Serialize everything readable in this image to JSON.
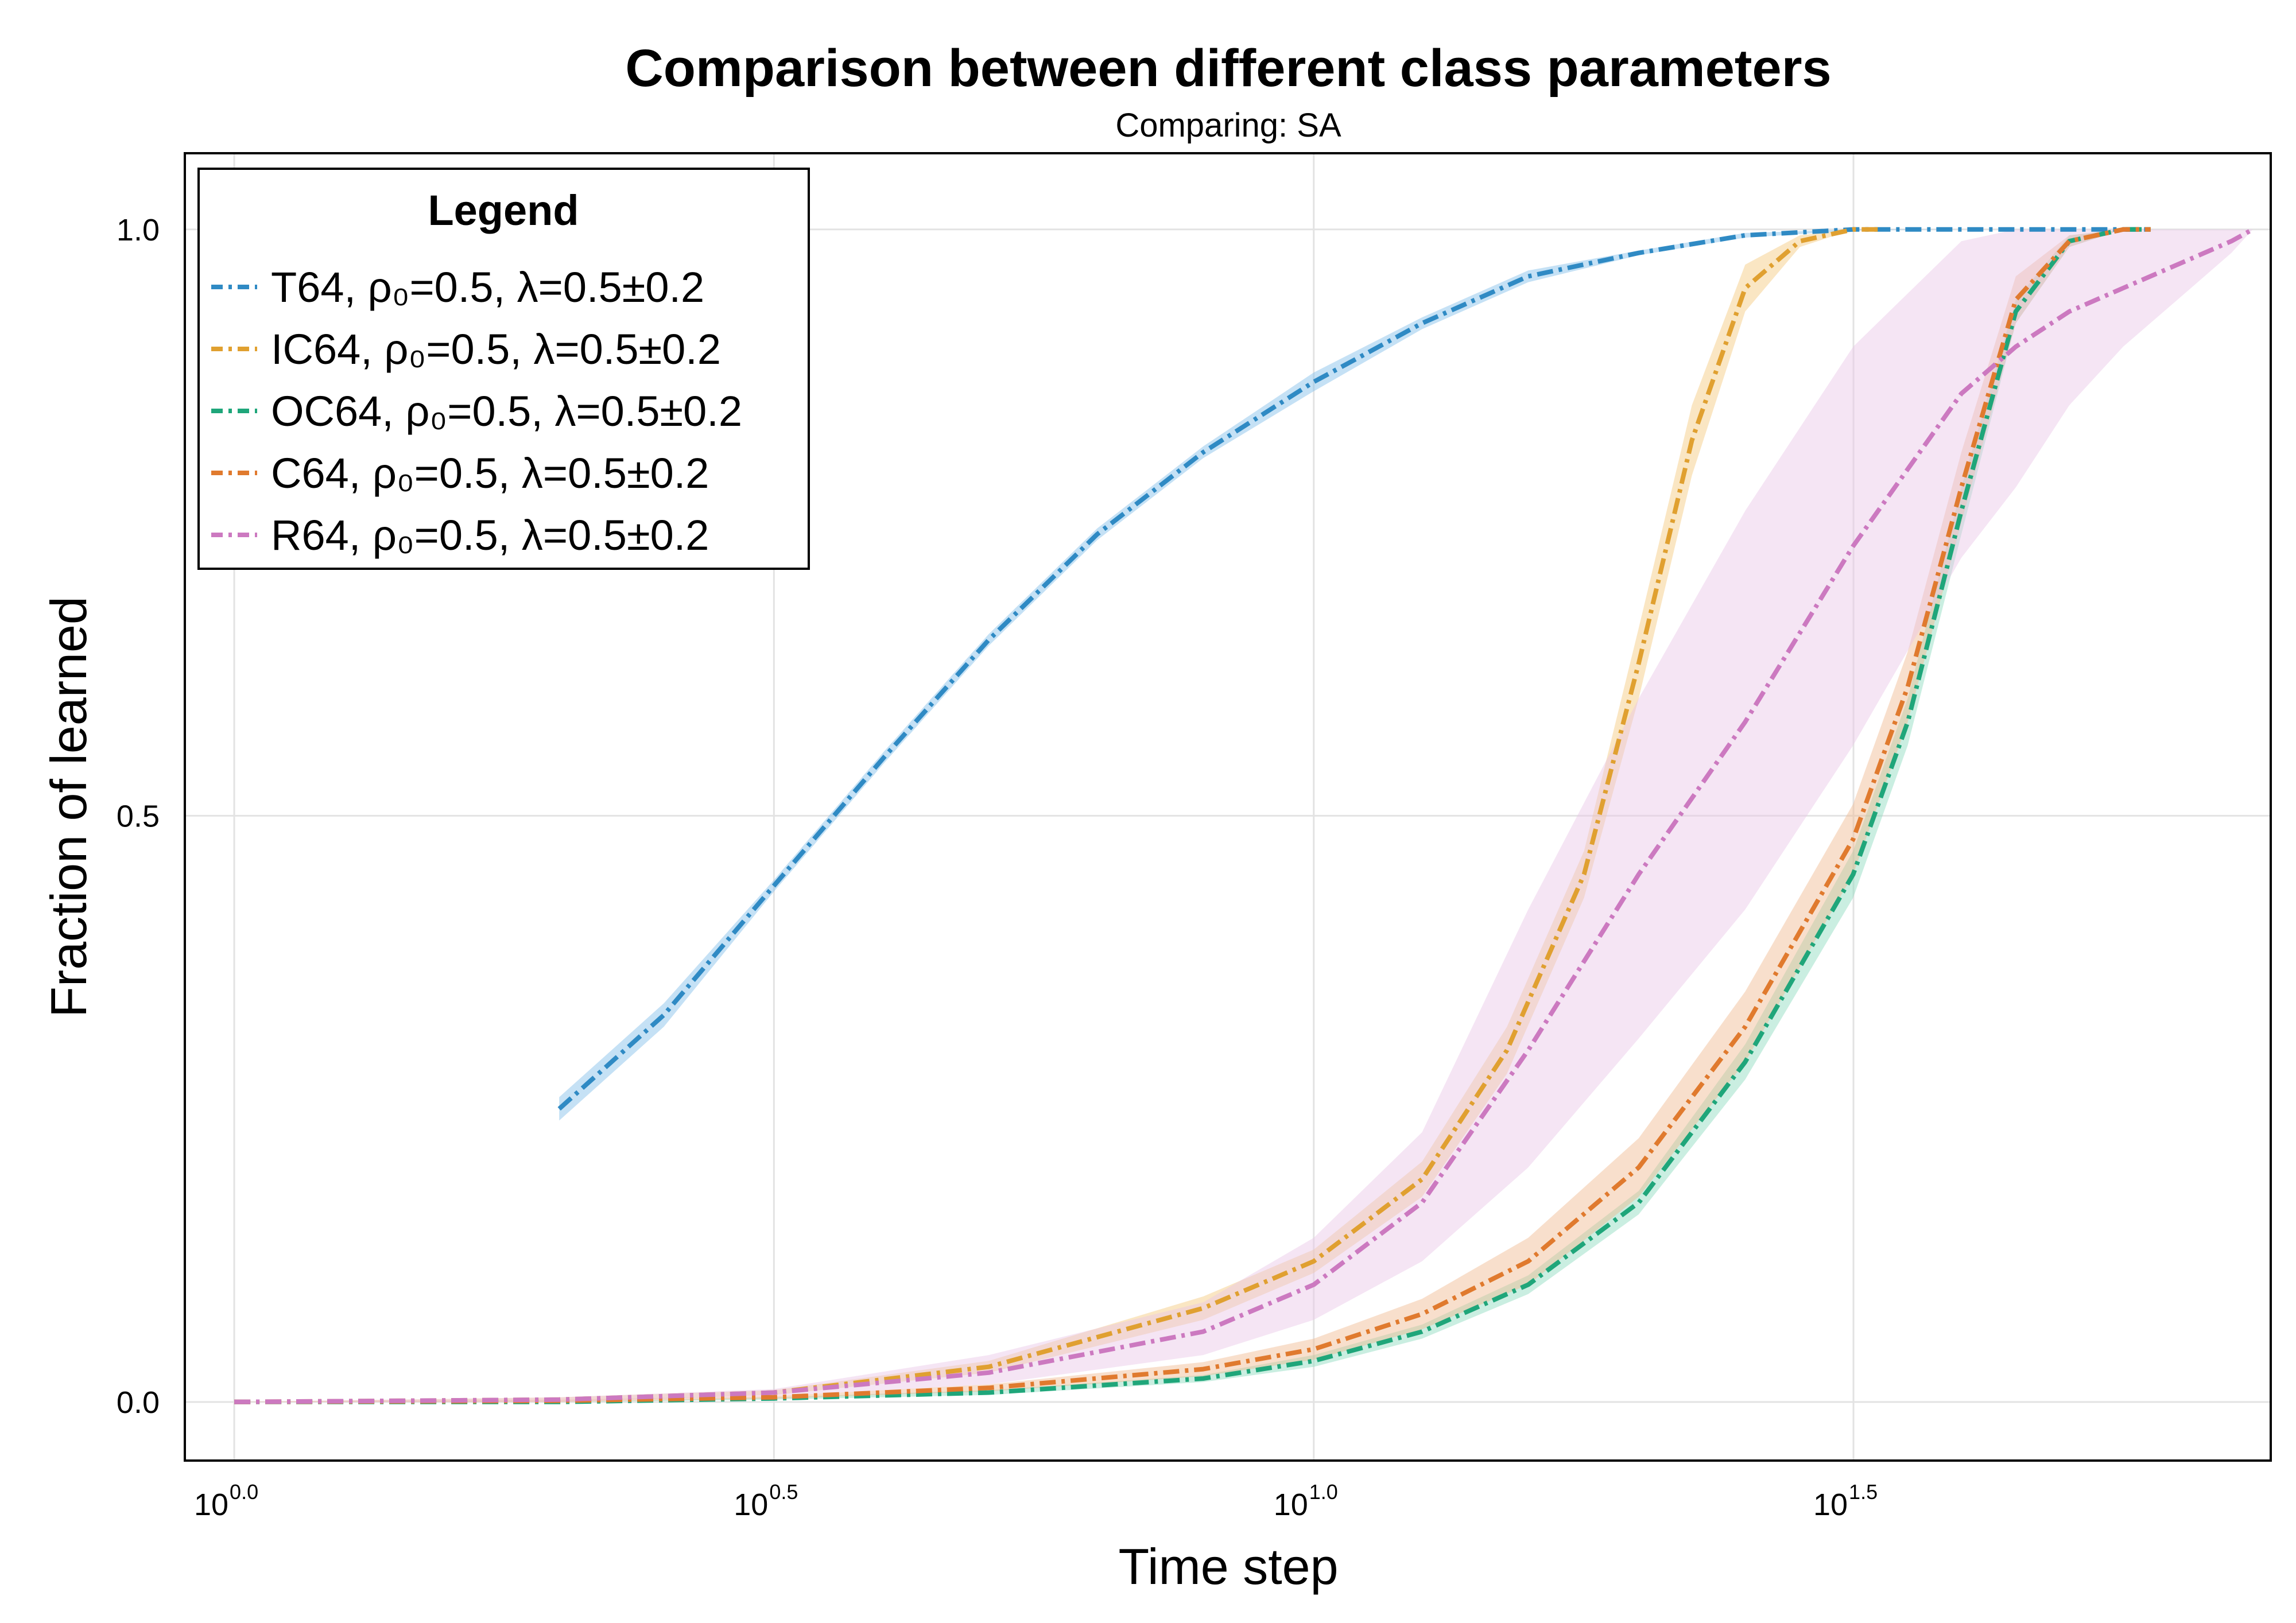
{
  "chart_data": {
    "type": "line",
    "title": "Comparison between different class parameters",
    "subtitle": "Comparing: SA",
    "xlabel": "Time step",
    "ylabel": "Fraction of learned",
    "x_scale": "log10",
    "xlim": [
      0.9,
      77
    ],
    "ylim": [
      -0.05,
      1.065
    ],
    "grid": true,
    "x_ticks": [
      {
        "base": "10",
        "exp": "0.0",
        "value": 1.0
      },
      {
        "base": "10",
        "exp": "0.5",
        "value": 3.162
      },
      {
        "base": "10",
        "exp": "1.0",
        "value": 10.0
      },
      {
        "base": "10",
        "exp": "1.5",
        "value": 31.62
      }
    ],
    "y_ticks": [
      {
        "label": "0.0",
        "value": 0.0
      },
      {
        "label": "0.5",
        "value": 0.5
      },
      {
        "label": "1.0",
        "value": 1.0
      }
    ],
    "legend": {
      "title": "Legend",
      "position": "top-left",
      "entries": [
        {
          "name": "T64, ρ₀=0.5, λ=0.5±0.2",
          "color": "#2f8ac4"
        },
        {
          "name": "IC64, ρ₀=0.5, λ=0.5±0.2",
          "color": "#e0a030"
        },
        {
          "name": "OC64, ρ₀=0.5, λ=0.5±0.2",
          "color": "#1fa67a"
        },
        {
          "name": "C64, ρ₀=0.5, λ=0.5±0.2",
          "color": "#e07a2e"
        },
        {
          "name": "R64, ρ₀=0.5, λ=0.5±0.2",
          "color": "#cc79c0"
        }
      ]
    },
    "series": [
      {
        "name": "T64, ρ₀=0.5, λ=0.5±0.2",
        "color": "#2f8ac4",
        "band_color": "#7fbde8",
        "x": [
          2.0,
          2.5,
          3.16,
          4.0,
          5.0,
          6.3,
          7.9,
          10.0,
          12.6,
          15.8,
          20.0,
          25.1,
          31.6,
          40.0,
          50.1,
          59.6
        ],
        "y": [
          0.25,
          0.33,
          0.44,
          0.55,
          0.65,
          0.74,
          0.81,
          0.87,
          0.92,
          0.96,
          0.98,
          0.995,
          1.0,
          1.0,
          1.0,
          1.0
        ],
        "lower": [
          0.24,
          0.32,
          0.435,
          0.545,
          0.645,
          0.735,
          0.805,
          0.862,
          0.915,
          0.955,
          0.978,
          0.993,
          0.999,
          1.0,
          1.0,
          1.0
        ],
        "upper": [
          0.26,
          0.34,
          0.445,
          0.555,
          0.655,
          0.745,
          0.815,
          0.878,
          0.925,
          0.965,
          0.982,
          0.997,
          1.0,
          1.0,
          1.0,
          1.0
        ]
      },
      {
        "name": "IC64, ρ₀=0.5, λ=0.5±0.2",
        "color": "#e0a030",
        "band_color": "#f5c77a",
        "x": [
          1.0,
          2.0,
          3.16,
          5.0,
          7.9,
          10.0,
          12.6,
          15.1,
          17.8,
          20.0,
          22.4,
          25.1,
          28.2,
          31.6,
          33.5
        ],
        "y": [
          0.0,
          0.002,
          0.008,
          0.03,
          0.08,
          0.12,
          0.19,
          0.3,
          0.45,
          0.63,
          0.82,
          0.95,
          0.99,
          1.0,
          1.0
        ],
        "lower": [
          0.0,
          0.0,
          0.006,
          0.025,
          0.07,
          0.11,
          0.175,
          0.28,
          0.43,
          0.6,
          0.79,
          0.93,
          0.985,
          1.0,
          1.0
        ],
        "upper": [
          0.0,
          0.004,
          0.01,
          0.035,
          0.09,
          0.13,
          0.205,
          0.32,
          0.47,
          0.66,
          0.85,
          0.97,
          0.995,
          1.0,
          1.0
        ]
      },
      {
        "name": "OC64, ρ₀=0.5, λ=0.5±0.2",
        "color": "#1fa67a",
        "band_color": "#8ad9bd",
        "x": [
          1.0,
          2.0,
          3.16,
          5.0,
          7.9,
          10.0,
          12.6,
          15.8,
          20.0,
          25.1,
          31.6,
          35.5,
          39.8,
          44.7,
          50.1,
          56.2,
          59.6
        ],
        "y": [
          0.0,
          0.0,
          0.003,
          0.008,
          0.02,
          0.035,
          0.06,
          0.1,
          0.17,
          0.29,
          0.45,
          0.58,
          0.76,
          0.93,
          0.99,
          1.0,
          1.0
        ],
        "lower": [
          0.0,
          0.0,
          0.002,
          0.006,
          0.017,
          0.03,
          0.054,
          0.092,
          0.16,
          0.275,
          0.43,
          0.56,
          0.74,
          0.92,
          0.985,
          1.0,
          1.0
        ],
        "upper": [
          0.0,
          0.0,
          0.004,
          0.01,
          0.023,
          0.04,
          0.066,
          0.108,
          0.18,
          0.305,
          0.47,
          0.6,
          0.78,
          0.94,
          0.995,
          1.0,
          1.0
        ]
      },
      {
        "name": "C64, ρ₀=0.5, λ=0.5±0.2",
        "color": "#e07a2e",
        "band_color": "#f0b98f",
        "x": [
          1.0,
          2.0,
          3.16,
          5.0,
          7.9,
          10.0,
          12.6,
          15.8,
          20.0,
          25.1,
          31.6,
          35.5,
          39.8,
          44.7,
          50.1,
          56.2,
          59.6
        ],
        "y": [
          0.0,
          0.001,
          0.004,
          0.012,
          0.028,
          0.045,
          0.075,
          0.12,
          0.2,
          0.32,
          0.48,
          0.61,
          0.78,
          0.94,
          0.99,
          1.0,
          1.0
        ],
        "lower": [
          0.0,
          0.0,
          0.003,
          0.009,
          0.022,
          0.036,
          0.062,
          0.1,
          0.175,
          0.29,
          0.45,
          0.58,
          0.75,
          0.92,
          0.985,
          1.0,
          1.0
        ],
        "upper": [
          0.0,
          0.002,
          0.005,
          0.015,
          0.034,
          0.054,
          0.088,
          0.14,
          0.225,
          0.35,
          0.51,
          0.64,
          0.81,
          0.96,
          0.995,
          1.0,
          1.0
        ]
      },
      {
        "name": "R64, ρ₀=0.5, λ=0.5±0.2",
        "color": "#cc79c0",
        "band_color": "#e8c6e6",
        "x": [
          1.0,
          2.0,
          3.16,
          5.0,
          7.9,
          10.0,
          12.6,
          15.8,
          20.0,
          25.1,
          31.6,
          39.8,
          44.7,
          50.1,
          56.2,
          63.1,
          70.8,
          74.1
        ],
        "y": [
          0.0,
          0.002,
          0.008,
          0.025,
          0.06,
          0.1,
          0.17,
          0.3,
          0.45,
          0.58,
          0.73,
          0.86,
          0.9,
          0.93,
          0.95,
          0.97,
          0.99,
          1.0
        ],
        "lower": [
          0.0,
          0.0,
          0.005,
          0.015,
          0.04,
          0.07,
          0.12,
          0.2,
          0.31,
          0.42,
          0.56,
          0.72,
          0.78,
          0.85,
          0.9,
          0.94,
          0.98,
          1.0
        ],
        "upper": [
          0.0,
          0.004,
          0.011,
          0.04,
          0.085,
          0.14,
          0.23,
          0.42,
          0.6,
          0.76,
          0.9,
          0.99,
          1.0,
          1.0,
          1.0,
          1.0,
          1.0,
          1.0
        ]
      }
    ]
  }
}
